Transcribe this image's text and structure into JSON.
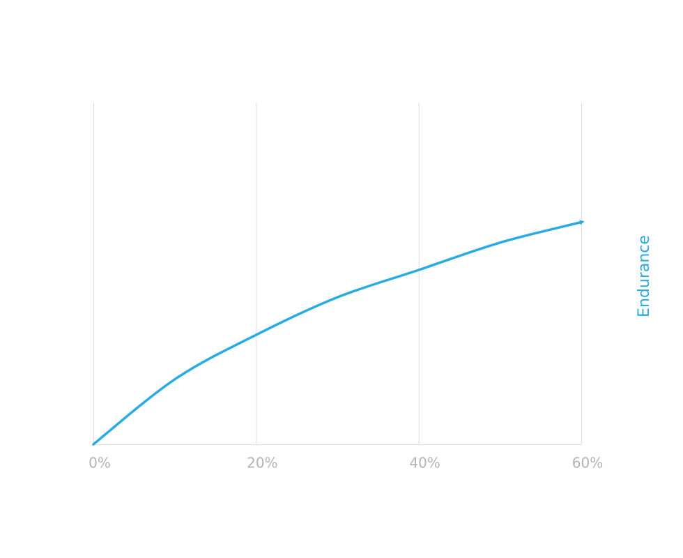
{
  "chart_data": {
    "type": "line",
    "y_label": "Endurance",
    "x": [
      0,
      10,
      20,
      30,
      40,
      50,
      60
    ],
    "series": [
      {
        "name": "Endurance",
        "color": "#29abe2",
        "values": [
          0,
          0.19,
          0.32,
          0.43,
          0.51,
          0.59,
          0.65
        ]
      }
    ],
    "xlim": [
      0,
      60
    ],
    "xticks": [
      {
        "value": 0,
        "label": "0%"
      },
      {
        "value": 20,
        "label": "20%"
      },
      {
        "value": 40,
        "label": "40%"
      },
      {
        "value": 60,
        "label": "60%"
      }
    ],
    "ylim": [
      0,
      1
    ],
    "grid": true
  }
}
